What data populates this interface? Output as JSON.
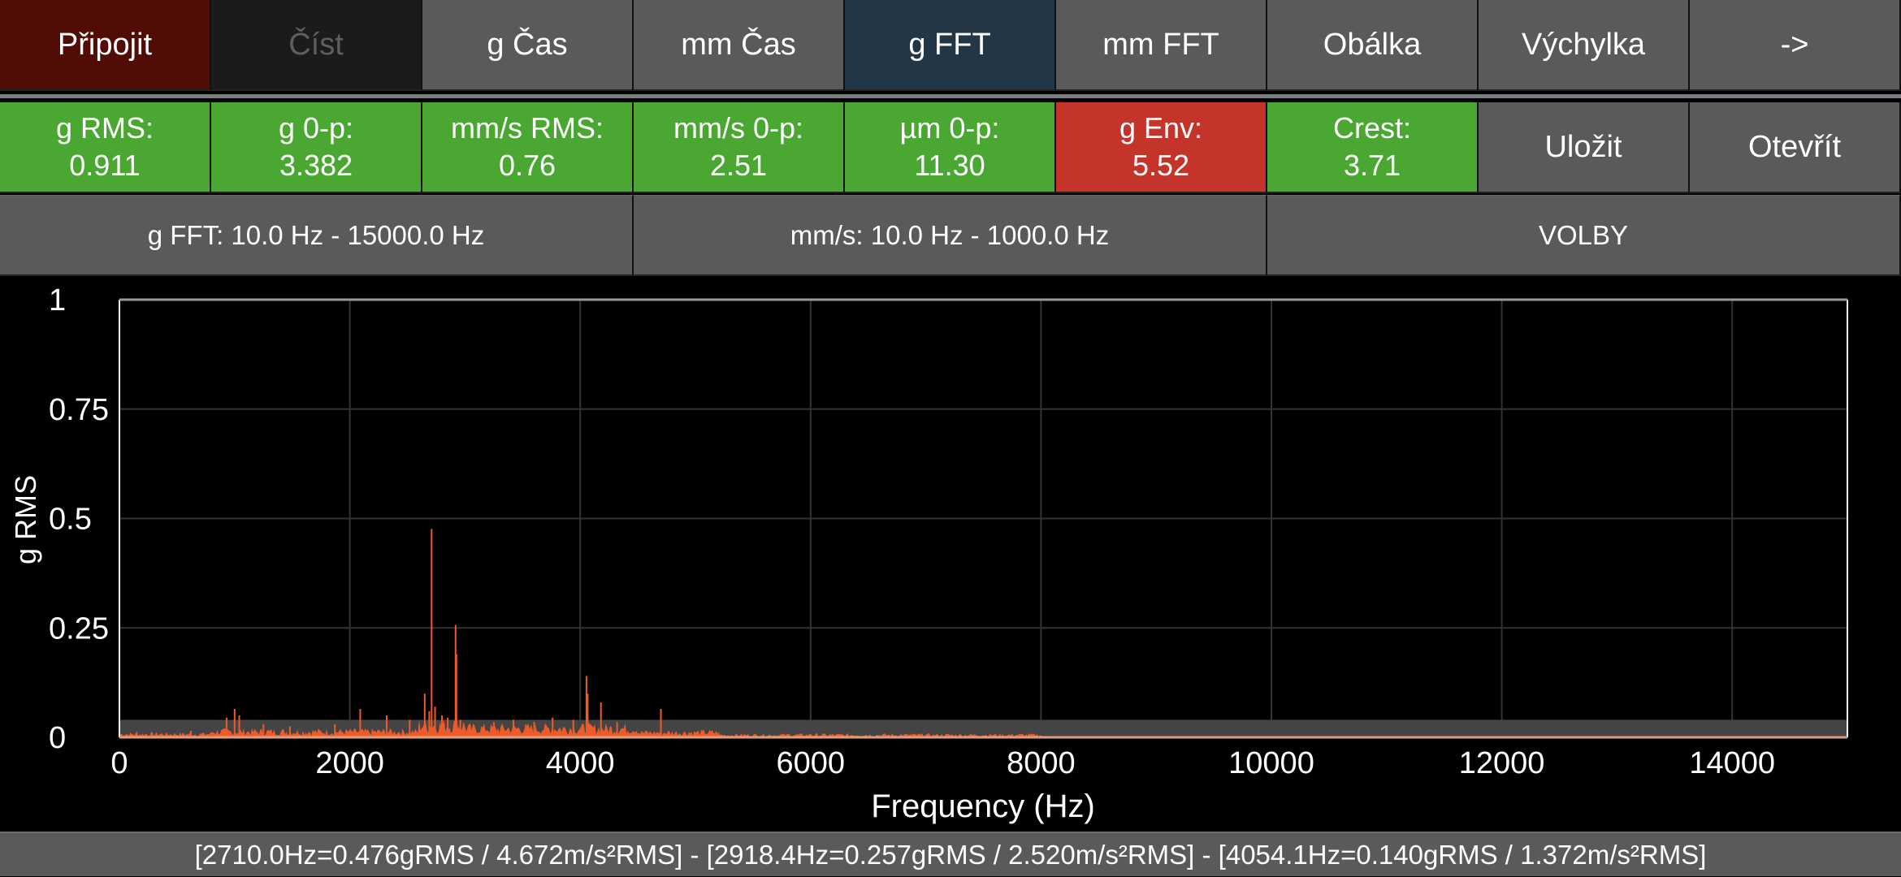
{
  "toolbar": {
    "buttons": [
      {
        "label": "Připojit",
        "state": "connect"
      },
      {
        "label": "Číst",
        "state": "disabled"
      },
      {
        "label": "g Čas",
        "state": "normal"
      },
      {
        "label": "mm Čas",
        "state": "normal"
      },
      {
        "label": "g FFT",
        "state": "active"
      },
      {
        "label": "mm FFT",
        "state": "normal"
      },
      {
        "label": "Obálka",
        "state": "normal"
      },
      {
        "label": "Výchylka",
        "state": "normal"
      },
      {
        "label": "->",
        "state": "normal"
      }
    ]
  },
  "stats": [
    {
      "label": "g RMS:",
      "value": "0.911",
      "status": "ok"
    },
    {
      "label": "g 0-p:",
      "value": "3.382",
      "status": "ok"
    },
    {
      "label": "mm/s RMS:",
      "value": "0.76",
      "status": "ok"
    },
    {
      "label": "mm/s 0-p:",
      "value": "2.51",
      "status": "ok"
    },
    {
      "label": "µm 0-p:",
      "value": "11.30",
      "status": "ok"
    },
    {
      "label": "g Env:",
      "value": "5.52",
      "status": "alarm"
    },
    {
      "label": "Crest:",
      "value": "3.71",
      "status": "ok"
    }
  ],
  "actions": {
    "save_label": "Uložit",
    "open_label": "Otevřít"
  },
  "ranges": {
    "g_fft": "g FFT: 10.0 Hz - 15000.0 Hz",
    "mm_s": "mm/s: 10.0 Hz - 1000.0 Hz",
    "options": "VOLBY"
  },
  "colors": {
    "ok": "#4aa832",
    "alarm": "#c5342a",
    "button": "#5a5a5a",
    "active": "#223645",
    "connect": "#510c05",
    "trace": "#f05a28",
    "band": "#444444"
  },
  "chart_data": {
    "type": "line",
    "title": "",
    "xlabel": "Frequency (Hz)",
    "ylabel": "g RMS",
    "xlim": [
      0,
      15000
    ],
    "ylim": [
      0,
      1
    ],
    "x_ticks": [
      0,
      2000,
      4000,
      6000,
      8000,
      10000,
      12000,
      14000
    ],
    "y_ticks": [
      "0",
      "0.25",
      "0.5",
      "0.75",
      "1"
    ],
    "grid": true,
    "threshold_band": 0.04,
    "series": [
      {
        "name": "g FFT",
        "peaks": [
          {
            "x": 150,
            "y": 0.012
          },
          {
            "x": 620,
            "y": 0.015
          },
          {
            "x": 930,
            "y": 0.045
          },
          {
            "x": 1000,
            "y": 0.065
          },
          {
            "x": 1040,
            "y": 0.05
          },
          {
            "x": 1250,
            "y": 0.03
          },
          {
            "x": 1480,
            "y": 0.025
          },
          {
            "x": 1870,
            "y": 0.03
          },
          {
            "x": 2090,
            "y": 0.065
          },
          {
            "x": 2320,
            "y": 0.05
          },
          {
            "x": 2520,
            "y": 0.04
          },
          {
            "x": 2650,
            "y": 0.1
          },
          {
            "x": 2690,
            "y": 0.06
          },
          {
            "x": 2710,
            "y": 0.476
          },
          {
            "x": 2740,
            "y": 0.07
          },
          {
            "x": 2800,
            "y": 0.05
          },
          {
            "x": 2850,
            "y": 0.045
          },
          {
            "x": 2918.4,
            "y": 0.257
          },
          {
            "x": 2925,
            "y": 0.19
          },
          {
            "x": 2960,
            "y": 0.04
          },
          {
            "x": 3250,
            "y": 0.035
          },
          {
            "x": 3420,
            "y": 0.04
          },
          {
            "x": 3600,
            "y": 0.035
          },
          {
            "x": 3760,
            "y": 0.045
          },
          {
            "x": 3940,
            "y": 0.04
          },
          {
            "x": 4054.1,
            "y": 0.14
          },
          {
            "x": 4065,
            "y": 0.1
          },
          {
            "x": 4180,
            "y": 0.08
          },
          {
            "x": 4320,
            "y": 0.035
          },
          {
            "x": 4700,
            "y": 0.065
          },
          {
            "x": 5200,
            "y": 0.01
          },
          {
            "x": 6000,
            "y": 0.008
          },
          {
            "x": 7000,
            "y": 0.006
          },
          {
            "x": 8000,
            "y": 0.004
          }
        ]
      }
    ]
  },
  "footer": {
    "peaks_text": "[2710.0Hz=0.476gRMS / 4.672m/s²RMS] - [2918.4Hz=0.257gRMS / 2.520m/s²RMS] - [4054.1Hz=0.140gRMS / 1.372m/s²RMS]"
  }
}
